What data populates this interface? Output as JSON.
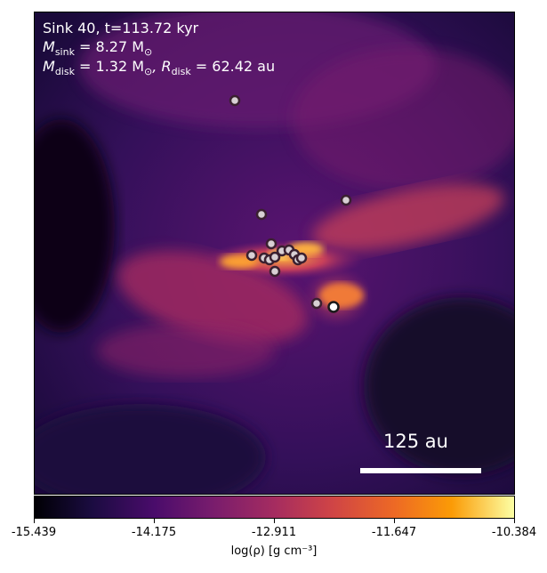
{
  "annotation": {
    "line1": "Sink 40, t=113.72 kyr",
    "msink_label": "M",
    "msink_sub": "sink",
    "msink_value": " = 8.27 M",
    "msink_unit_sub": "⊙",
    "mdisk_label": "M",
    "mdisk_sub": "disk",
    "mdisk_value": " = 1.32 M",
    "mdisk_unit_sub": "⊙",
    "rdisk_label": ", R",
    "rdisk_sub": "disk",
    "rdisk_value": " = 62.42 au"
  },
  "scalebar": {
    "label": "125 au"
  },
  "colorbar": {
    "ticks": [
      "-15.439",
      "-14.175",
      "-12.911",
      "-11.647",
      "-10.384"
    ],
    "label": "log(ρ) [g cm⁻³]",
    "colormap": "inferno"
  },
  "colors": {
    "sink_fill": "#d8d0d4",
    "sink_edge": "#3a2030",
    "main_sink_fill": "#ffffff"
  }
}
